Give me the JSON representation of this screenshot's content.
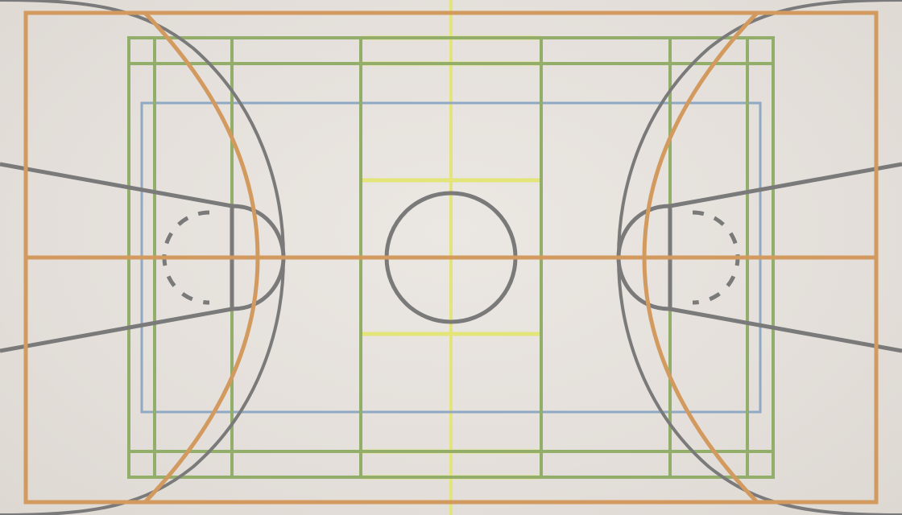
{
  "diagram": {
    "type": "multi-sport court floor markings",
    "line_colors": {
      "basketball": "#7a7a7a",
      "basketball_dashed": "#7a7a7a",
      "handball_futsal": "#d29a5e",
      "volleyball": "#8fa9c4",
      "badminton_tennis": "#93ad6a",
      "center_yellow": "#e3e57a"
    },
    "background_color": "#e6e1dc"
  }
}
